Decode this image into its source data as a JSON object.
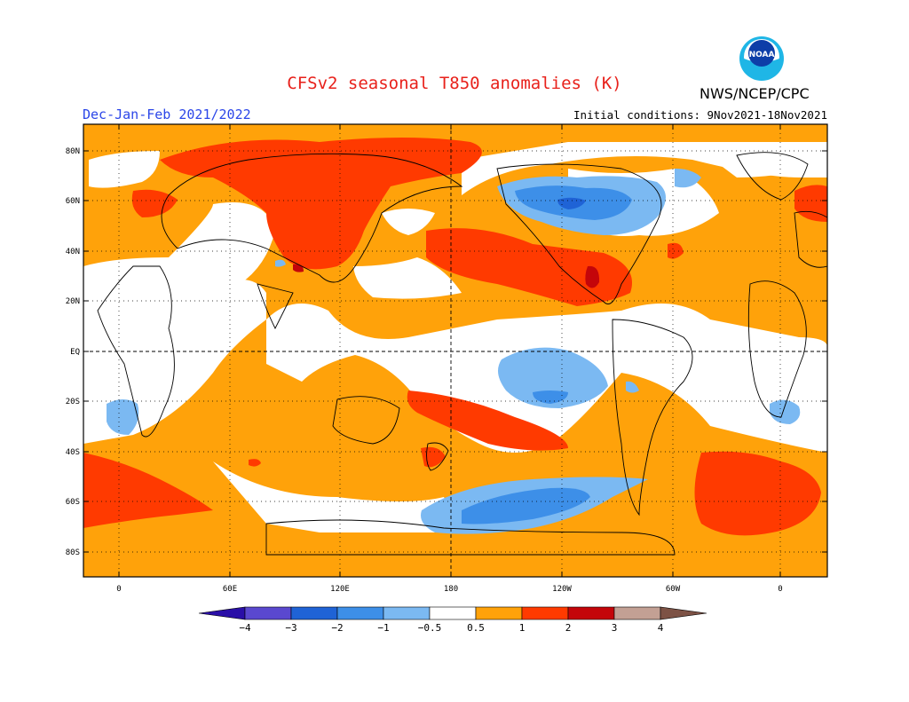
{
  "header": {
    "title": "CFSv2 seasonal T850 anomalies (K)",
    "agency": "NWS/NCEP/CPC",
    "season": "Dec-Jan-Feb 2021/2022",
    "initial_conditions": "Initial conditions: 9Nov2021-18Nov2021",
    "logo_text": "NOAA"
  },
  "map": {
    "lat_labels": [
      "80N",
      "60N",
      "40N",
      "20N",
      "EQ",
      "20S",
      "40S",
      "60S",
      "80S"
    ],
    "lon_labels": [
      "0",
      "60E",
      "120E",
      "180",
      "120W",
      "60W",
      "0"
    ]
  },
  "colorbar": {
    "labels": [
      "-4",
      "-3",
      "-2",
      "-1",
      "-0.5",
      "0.5",
      "1",
      "2",
      "3",
      "4"
    ],
    "colors": {
      "lt_m4": "#2a0fa7",
      "m4_m3": "#5a48cf",
      "m3_m2": "#1f63d6",
      "m2_m1": "#3d8fe8",
      "m1_m05": "#7bb9f2",
      "neutral": "#ffffff",
      "p05_1": "#ffa20a",
      "p1_2": "#ff3a00",
      "p2_3": "#c4050a",
      "p3_4": "#c3a094",
      "gt_p4": "#7d5245"
    }
  }
}
